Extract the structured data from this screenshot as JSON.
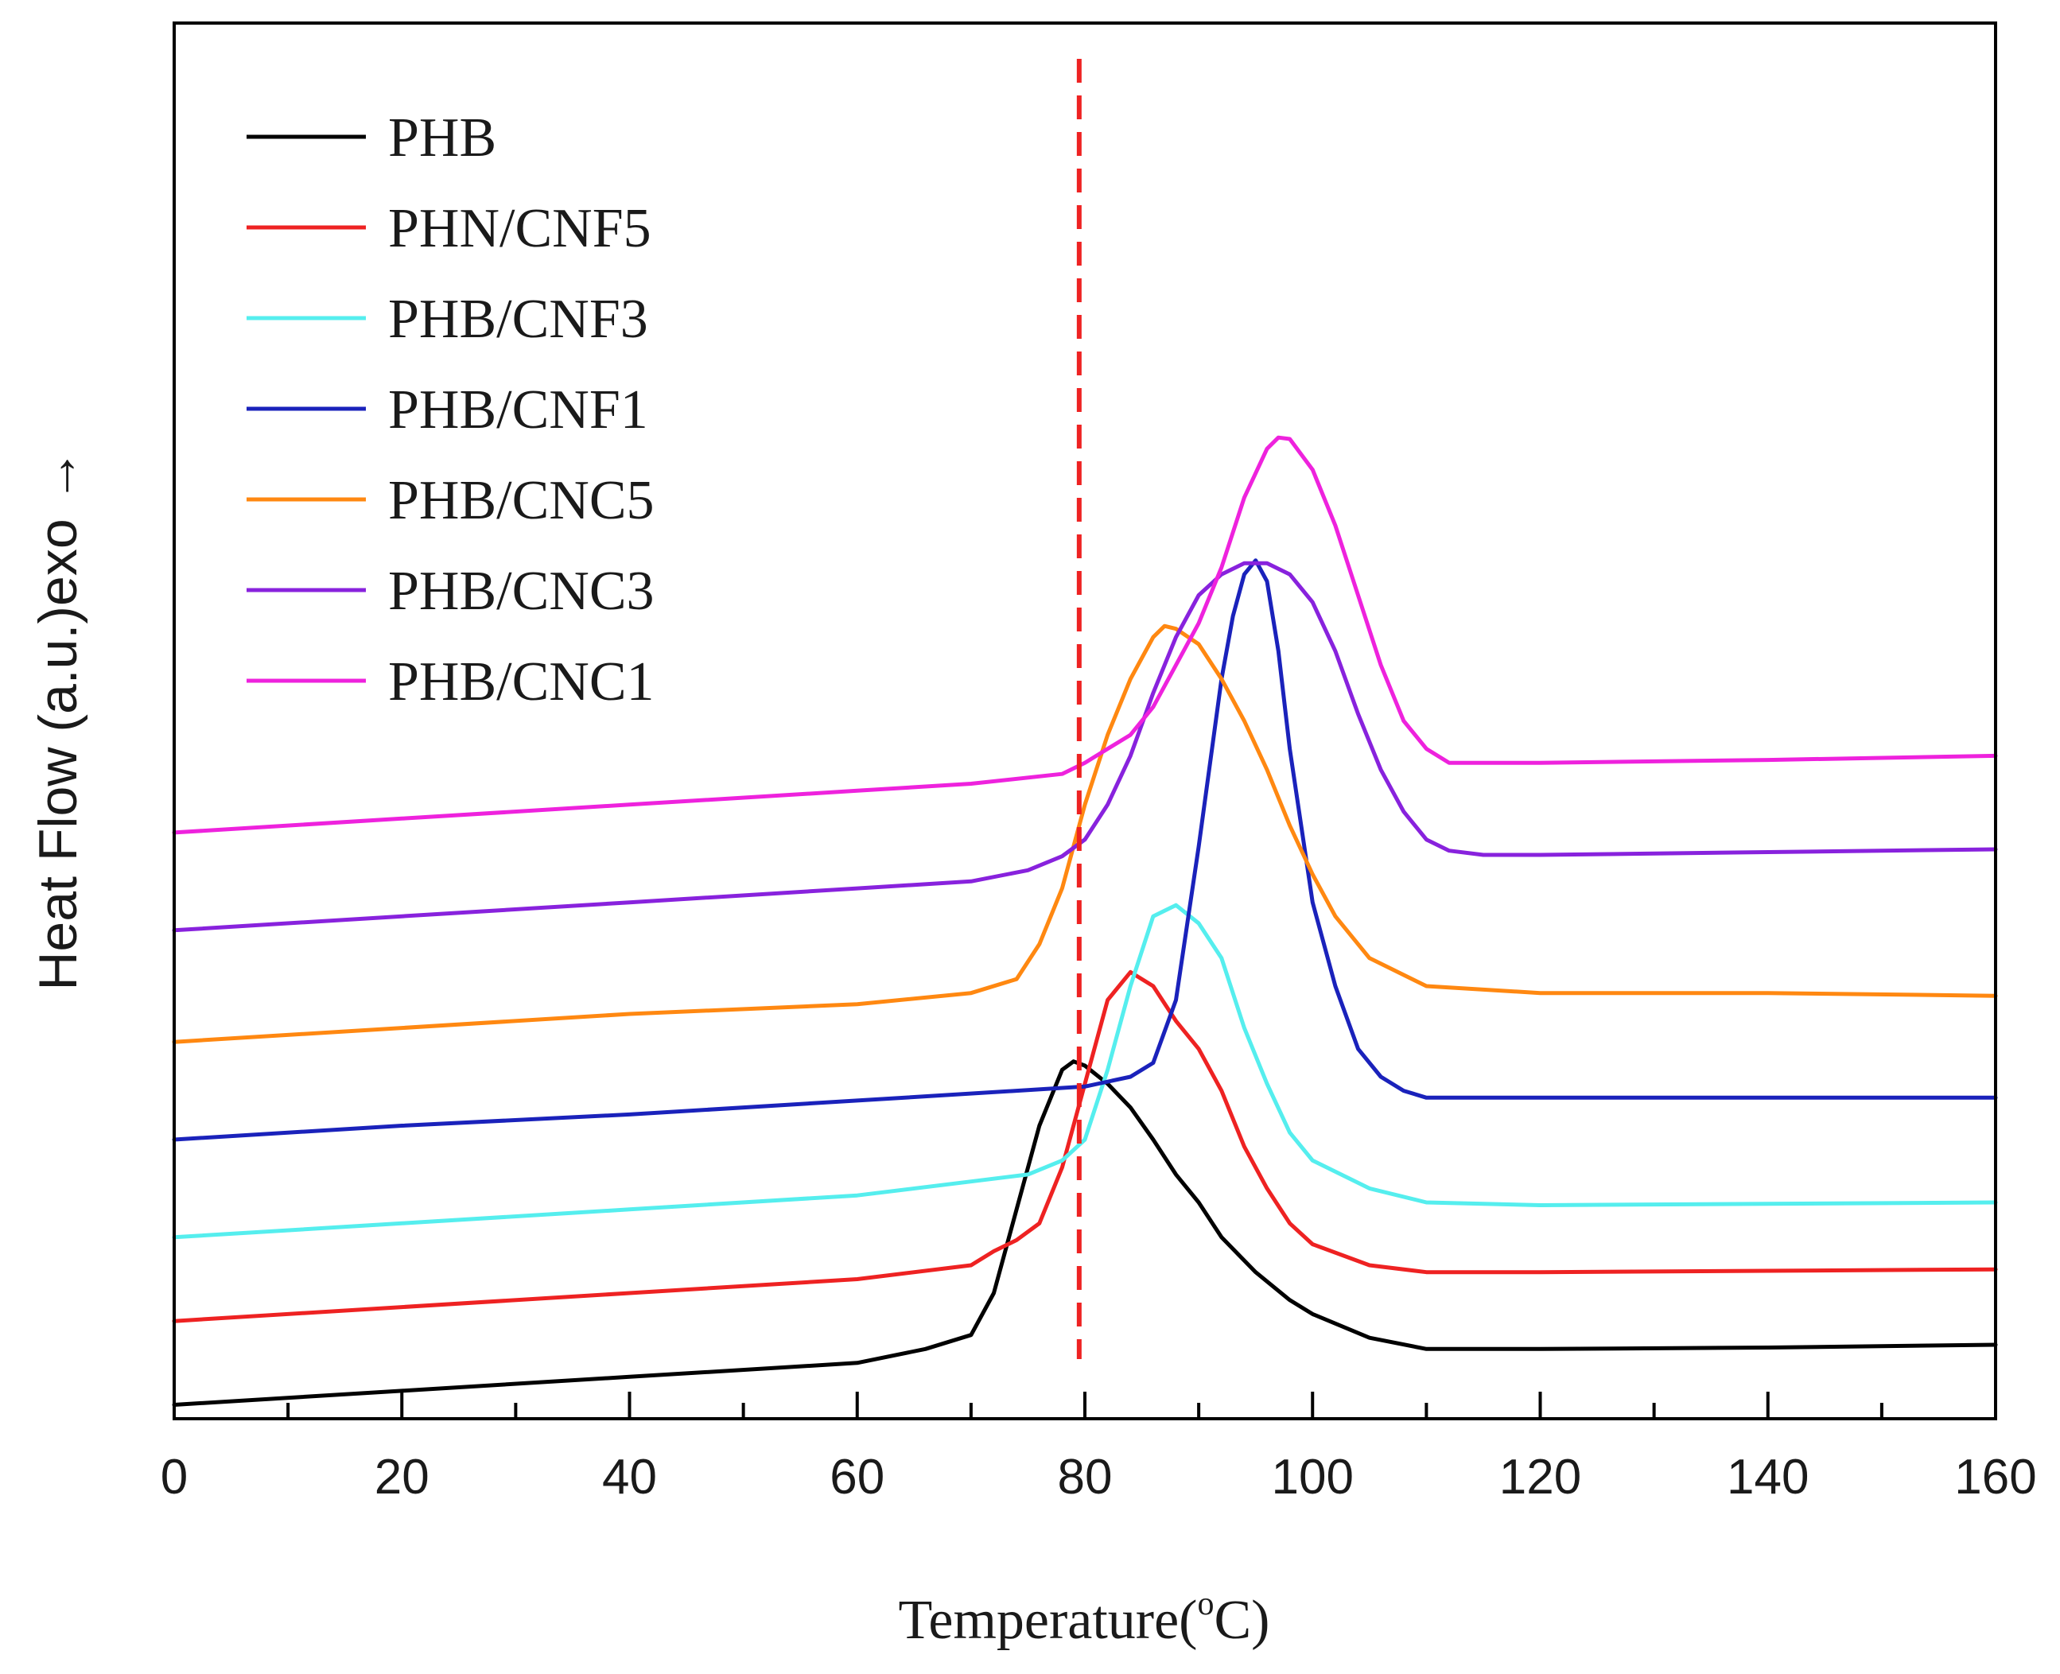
{
  "chart_data": {
    "type": "line",
    "title": "",
    "xlabel": "Temperature(",
    "xlabel_degree": "o",
    "xlabel_unit": "C)",
    "ylabel": "Heat Flow (a.u.)exo",
    "ylabel_arrow": "→",
    "xlim": [
      0,
      160
    ],
    "ylim": [
      0,
      100
    ],
    "xticks": [
      "0",
      "20",
      "40",
      "60",
      "80",
      "100",
      "120",
      "140",
      "160"
    ],
    "grid": false,
    "legend_position": "top-left",
    "reference_line": {
      "x": 79.5,
      "color": "#ee2222",
      "style": "dashed"
    },
    "series": [
      {
        "name": "PHB",
        "color": "#000000",
        "x": [
          0,
          20,
          40,
          60,
          66,
          70,
          72,
          74,
          76,
          78,
          79,
          80,
          82,
          84,
          86,
          88,
          90,
          92,
          95,
          98,
          100,
          105,
          110,
          115,
          120,
          140,
          160
        ],
        "y": [
          1,
          2,
          3,
          4,
          5,
          6,
          9,
          15,
          21,
          25,
          25.6,
          25.3,
          24,
          22.3,
          20,
          17.5,
          15.5,
          13,
          10.5,
          8.5,
          7.5,
          5.8,
          5,
          5,
          5,
          5.1,
          5.3
        ]
      },
      {
        "name": "PHN/CNF5",
        "color": "#ee2222",
        "x": [
          0,
          20,
          40,
          60,
          70,
          72,
          74,
          76,
          78,
          80,
          82,
          84,
          86,
          88,
          90,
          92,
          94,
          96,
          98,
          100,
          105,
          110,
          120,
          140,
          160
        ],
        "y": [
          7,
          8,
          9,
          10,
          11,
          12,
          12.8,
          14,
          18,
          24,
          30,
          32,
          31,
          28.5,
          26.5,
          23.5,
          19.5,
          16.5,
          14,
          12.5,
          11,
          10.5,
          10.5,
          10.6,
          10.7
        ]
      },
      {
        "name": "PHB/CNF3",
        "color": "#55eeee",
        "x": [
          0,
          20,
          40,
          60,
          70,
          75,
          78,
          80,
          82,
          84,
          86,
          88,
          90,
          92,
          94,
          96,
          98,
          100,
          105,
          110,
          120,
          140,
          160
        ],
        "y": [
          13,
          14,
          15,
          16,
          17,
          17.5,
          18.5,
          20,
          25,
          31,
          36,
          36.8,
          35.5,
          33,
          28,
          24,
          20.5,
          18.5,
          16.5,
          15.5,
          15.3,
          15.4,
          15.5
        ]
      },
      {
        "name": "PHB/CNF1",
        "color": "#1a22bb",
        "x": [
          0,
          20,
          40,
          60,
          80,
          84,
          86,
          88,
          90,
          92,
          93,
          94,
          95,
          96,
          97,
          98,
          100,
          102,
          104,
          106,
          108,
          110,
          120,
          140,
          160
        ],
        "y": [
          20,
          21,
          21.8,
          22.8,
          23.8,
          24.5,
          25.5,
          30,
          41,
          53,
          57.5,
          60.5,
          61.5,
          60,
          55,
          48,
          37,
          31,
          26.5,
          24.5,
          23.5,
          23,
          23,
          23,
          23
        ]
      },
      {
        "name": "PHB/CNC5",
        "color": "#ff8811",
        "x": [
          0,
          20,
          40,
          60,
          70,
          74,
          76,
          78,
          80,
          82,
          84,
          86,
          87,
          88,
          90,
          92,
          94,
          96,
          98,
          100,
          102,
          105,
          110,
          120,
          140,
          160
        ],
        "y": [
          27,
          28,
          29,
          29.7,
          30.5,
          31.5,
          34,
          38,
          44,
          49,
          53,
          56,
          56.8,
          56.6,
          55.5,
          53,
          50,
          46.5,
          42.5,
          39,
          36,
          33,
          31,
          30.5,
          30.5,
          30.3
        ]
      },
      {
        "name": "PHB/CNC3",
        "color": "#8822dd",
        "x": [
          0,
          20,
          40,
          60,
          70,
          75,
          78,
          80,
          82,
          84,
          86,
          88,
          90,
          92,
          94,
          96,
          98,
          100,
          102,
          104,
          106,
          108,
          110,
          112,
          115,
          120,
          140,
          160
        ],
        "y": [
          35,
          36,
          37,
          38,
          38.5,
          39.3,
          40.3,
          41.5,
          44,
          47.5,
          52,
          56,
          59,
          60.5,
          61.3,
          61.3,
          60.5,
          58.5,
          55,
          50.5,
          46.5,
          43.5,
          41.5,
          40.7,
          40.4,
          40.4,
          40.6,
          40.8
        ]
      },
      {
        "name": "PHB/CNC1",
        "color": "#ee22dd",
        "x": [
          0,
          20,
          40,
          60,
          70,
          78,
          80,
          82,
          84,
          86,
          88,
          90,
          92,
          94,
          96,
          97,
          98,
          100,
          102,
          104,
          106,
          108,
          110,
          112,
          115,
          120,
          140,
          160
        ],
        "y": [
          42,
          43,
          44,
          45,
          45.5,
          46.2,
          47,
          48,
          49,
          51,
          54,
          57,
          61,
          66,
          69.5,
          70.3,
          70.2,
          68,
          64,
          59,
          54,
          50,
          48,
          47,
          47,
          47,
          47.2,
          47.5
        ]
      }
    ]
  }
}
